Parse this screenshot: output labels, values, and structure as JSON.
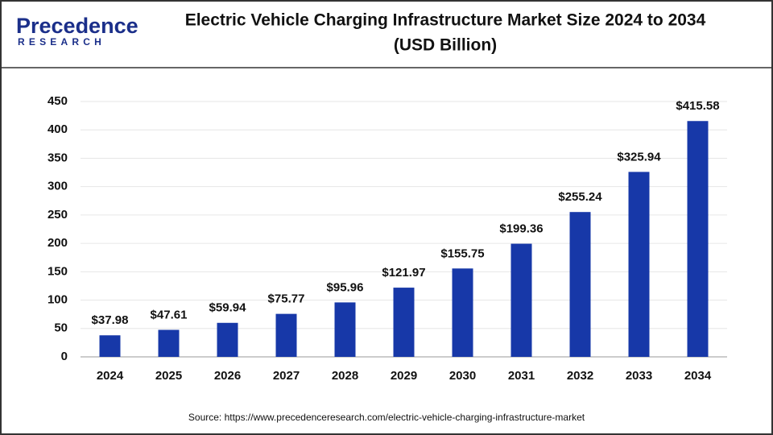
{
  "logo": {
    "name": "Precedence",
    "sub": "RESEARCH"
  },
  "chart_data": {
    "type": "bar",
    "title": "Electric Vehicle Charging Infrastructure Market Size 2024 to 2034",
    "subtitle": "(USD Billion)",
    "categories": [
      "2024",
      "2025",
      "2026",
      "2027",
      "2028",
      "2029",
      "2030",
      "2031",
      "2032",
      "2033",
      "2034"
    ],
    "values": [
      37.98,
      47.61,
      59.94,
      75.77,
      95.96,
      121.97,
      155.75,
      199.36,
      255.24,
      325.94,
      415.58
    ],
    "value_labels": [
      "$37.98",
      "$47.61",
      "$59.94",
      "$75.77",
      "$95.96",
      "$121.97",
      "$155.75",
      "$199.36",
      "$255.24",
      "$325.94",
      "$415.58"
    ],
    "color": "#1738a8",
    "ylim": [
      0,
      450
    ],
    "yticks": [
      0,
      50,
      100,
      150,
      200,
      250,
      300,
      350,
      400,
      450
    ],
    "grid": true,
    "source": "Source: https://www.precedenceresearch.com/electric-vehicle-charging-infrastructure-market"
  }
}
